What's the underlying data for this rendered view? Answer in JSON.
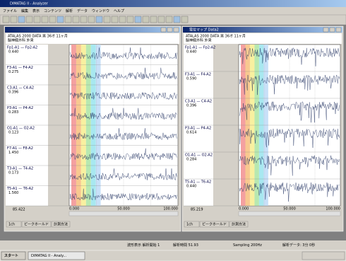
{
  "app_title": "DIMATAG II - Analyzer",
  "menu": [
    "ファイル",
    "編集",
    "表示",
    "コンテンツ",
    "解析",
    "データ",
    "ウィンドウ",
    "ヘルプ"
  ],
  "left_window": {
    "header": [
      "ATALAS 2000 DATA  男 36才 11ヶ月",
      "脳神経外科 外来"
    ],
    "channels": [
      {
        "label": "Fp1-A1 — Fp2-A2",
        "value": "0.440"
      },
      {
        "label": "F3-A1 — F4-A2",
        "value": "0.275"
      },
      {
        "label": "C3-A1 — C4-A2",
        "value": "0.396"
      },
      {
        "label": "P3-A1 — P4-A2",
        "value": "0.283"
      },
      {
        "label": "O1-A1 — O2-A2",
        "value": "0.123"
      },
      {
        "label": "F7-A1 — F8-A2",
        "value": "1.450"
      },
      {
        "label": "T3-A1 — T4-A2",
        "value": "0.173"
      },
      {
        "label": "T5-A1 — T6-A2",
        "value": "1.560"
      }
    ],
    "x_labels": [
      "0.000",
      "50.000",
      "100.000"
    ],
    "footer_value": "85.422",
    "tabs": [
      "1ch",
      "ピークホールド",
      "計測方法"
    ]
  },
  "right_window": {
    "title": "電位マップ Data2",
    "header": [
      "ATALAS 2000 DATA  男 36才 11ヶ月",
      "脳神経外科 外来"
    ],
    "channels": [
      {
        "label": "Fp1-A1 — Fp2-A2",
        "value": "0.440"
      },
      {
        "label": "F3-A1 — F4-A2",
        "value": "0.590"
      },
      {
        "label": "C3-A1 — C4-A2",
        "value": "0.396"
      },
      {
        "label": "P3-A1 — P4-A2",
        "value": "0.614"
      },
      {
        "label": "O1-A1 — O2-A2",
        "value": "0.284"
      },
      {
        "label": "T5-A1 — T6-A2",
        "value": "0.440"
      }
    ],
    "x_labels": [
      "0.000",
      "50.000",
      "100.000"
    ],
    "footer_value": "85.219",
    "tabs": [
      "1ch",
      "ピークホールド",
      "計測方法"
    ]
  },
  "status": [
    "波形表示 解析開始 1",
    "解析時間 51.93",
    "Sampling 200Hz",
    "解析データ: 3分 0秒"
  ],
  "taskbar": {
    "start": "スタート",
    "task": "DIMATAG II - Analy..."
  }
}
